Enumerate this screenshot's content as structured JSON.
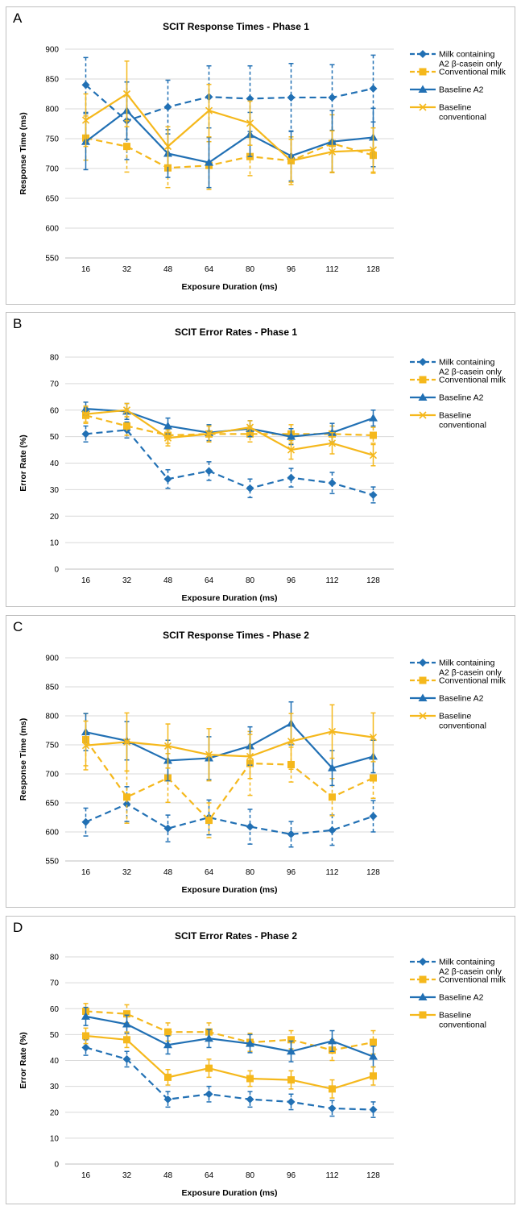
{
  "colors": {
    "blue": "#2170b4",
    "yellow": "#f5b81c",
    "grid": "#d9d9d9",
    "axis": "#404040"
  },
  "chart_data": [
    {
      "panel_label": "A",
      "type": "line",
      "title": "SCIT Response Times - Phase 1",
      "xlabel": "Exposure Duration (ms)",
      "ylabel": "Response Time (ms)",
      "ylim": [
        550,
        900
      ],
      "ytick_step": 50,
      "yticks": [
        "550",
        "600",
        "650",
        "700",
        "750",
        "800",
        "850",
        "900"
      ],
      "categories": [
        "16",
        "32",
        "48",
        "64",
        "80",
        "96",
        "112",
        "128"
      ],
      "legend_position": "right",
      "series": [
        {
          "name": "Milk containing A2 β-casein only",
          "color": "blue",
          "dashed": true,
          "marker": "diamond",
          "values": [
            840,
            780,
            803,
            820,
            817,
            819,
            819,
            834
          ],
          "errors": [
            46,
            65,
            45,
            52,
            55,
            57,
            55,
            56
          ]
        },
        {
          "name": "Conventional milk",
          "color": "yellow",
          "dashed": true,
          "marker": "square",
          "values": [
            751,
            737,
            701,
            705,
            720,
            713,
            742,
            722
          ],
          "errors": [
            37,
            43,
            33,
            40,
            32,
            40,
            48,
            30
          ]
        },
        {
          "name": "Baseline A2",
          "color": "blue",
          "dashed": false,
          "marker": "triangle",
          "values": [
            745,
            797,
            725,
            710,
            757,
            721,
            745,
            752
          ],
          "errors": [
            47,
            48,
            40,
            42,
            37,
            42,
            52,
            49
          ]
        },
        {
          "name": "Baseline conventional",
          "color": "yellow",
          "dashed": false,
          "marker": "x",
          "values": [
            781,
            825,
            737,
            797,
            776,
            713,
            728,
            731
          ],
          "errors": [
            44,
            55,
            33,
            44,
            37,
            36,
            35,
            37
          ]
        }
      ]
    },
    {
      "panel_label": "B",
      "type": "line",
      "title": "SCIT Error Rates - Phase 1",
      "xlabel": "Exposure Duration (ms)",
      "ylabel": "Error Rate (%)",
      "ylim": [
        0,
        80
      ],
      "ytick_step": 10,
      "yticks": [
        "0",
        "10",
        "20",
        "30",
        "40",
        "50",
        "60",
        "70",
        "80"
      ],
      "categories": [
        "16",
        "32",
        "48",
        "64",
        "80",
        "96",
        "112",
        "128"
      ],
      "legend_position": "right",
      "series": [
        {
          "name": "Milk containing A2 β-casein only",
          "color": "blue",
          "dashed": true,
          "marker": "diamond",
          "values": [
            51,
            52.5,
            34,
            37,
            30.5,
            34.5,
            32.5,
            28
          ],
          "errors": [
            3,
            3,
            3.5,
            3.5,
            3.5,
            3.5,
            4,
            3
          ]
        },
        {
          "name": "Conventional milk",
          "color": "yellow",
          "dashed": true,
          "marker": "square",
          "values": [
            58,
            54,
            50.5,
            51,
            51,
            51,
            51,
            50.5
          ],
          "errors": [
            3,
            3.5,
            3,
            3,
            3,
            3.5,
            3,
            3
          ]
        },
        {
          "name": "Baseline A2",
          "color": "blue",
          "dashed": false,
          "marker": "triangle",
          "values": [
            60.5,
            59.5,
            54,
            51.5,
            53,
            50,
            51.5,
            57
          ],
          "errors": [
            2.5,
            3,
            3,
            3,
            3,
            3,
            3.5,
            3
          ]
        },
        {
          "name": "Baseline conventional",
          "color": "yellow",
          "dashed": false,
          "marker": "x",
          "values": [
            58.5,
            60,
            49.5,
            51,
            53.5,
            45,
            47.5,
            43
          ],
          "errors": [
            3,
            2.5,
            3,
            3,
            2.5,
            3.5,
            4,
            4
          ]
        }
      ]
    },
    {
      "panel_label": "C",
      "type": "line",
      "title": "SCIT Response Times - Phase 2",
      "xlabel": "Exposure Duration (ms)",
      "ylabel": "Response Time (ms)",
      "ylim": [
        550,
        900
      ],
      "ytick_step": 50,
      "yticks": [
        "550",
        "600",
        "650",
        "700",
        "750",
        "800",
        "850",
        "900"
      ],
      "categories": [
        "16",
        "32",
        "48",
        "64",
        "80",
        "96",
        "112",
        "128"
      ],
      "legend_position": "right",
      "series": [
        {
          "name": "Milk containing A2 β-casein only",
          "color": "blue",
          "dashed": true,
          "marker": "diamond",
          "values": [
            617,
            648,
            606,
            625,
            609,
            596,
            603,
            627
          ],
          "errors": [
            24,
            30,
            23,
            30,
            30,
            22,
            26,
            27
          ]
        },
        {
          "name": "Conventional milk",
          "color": "yellow",
          "dashed": true,
          "marker": "square",
          "values": [
            759,
            660,
            693,
            620,
            718,
            716,
            660,
            693
          ],
          "errors": [
            45,
            45,
            42,
            30,
            55,
            30,
            32,
            35
          ]
        },
        {
          "name": "Baseline A2",
          "color": "blue",
          "dashed": false,
          "marker": "triangle",
          "values": [
            772,
            757,
            723,
            727,
            748,
            787,
            710,
            730
          ],
          "errors": [
            32,
            33,
            35,
            37,
            33,
            37,
            30,
            28
          ]
        },
        {
          "name": "Baseline conventional",
          "color": "yellow",
          "dashed": false,
          "marker": "x",
          "values": [
            749,
            755,
            748,
            733,
            730,
            756,
            773,
            763
          ],
          "errors": [
            42,
            50,
            38,
            45,
            38,
            48,
            46,
            42
          ]
        }
      ]
    },
    {
      "panel_label": "D",
      "type": "line",
      "title": "SCIT Error Rates - Phase 2",
      "xlabel": "Exposure Duration (ms)",
      "ylabel": "Error Rate (%)",
      "ylim": [
        0,
        80
      ],
      "ytick_step": 10,
      "yticks": [
        "0",
        "10",
        "20",
        "30",
        "40",
        "50",
        "60",
        "70",
        "80"
      ],
      "categories": [
        "16",
        "32",
        "48",
        "64",
        "80",
        "96",
        "112",
        "128"
      ],
      "legend_position": "right",
      "series": [
        {
          "name": "Milk containing A2 β-casein only",
          "color": "blue",
          "dashed": true,
          "marker": "diamond",
          "values": [
            45,
            40.5,
            25,
            27,
            25,
            24,
            21.5,
            21
          ],
          "errors": [
            3,
            3,
            3,
            3,
            3,
            3,
            3,
            3
          ]
        },
        {
          "name": "Conventional milk",
          "color": "yellow",
          "dashed": true,
          "marker": "square",
          "values": [
            59,
            58,
            51,
            51,
            47,
            48,
            44,
            47
          ],
          "errors": [
            3,
            3.5,
            3.5,
            3.5,
            3.5,
            3.5,
            4,
            4.5
          ]
        },
        {
          "name": "Baseline A2",
          "color": "blue",
          "dashed": false,
          "marker": "triangle",
          "values": [
            57,
            54,
            46,
            48.5,
            46.5,
            43.5,
            47.5,
            41.5
          ],
          "errors": [
            3.5,
            3.5,
            3.5,
            3.5,
            3.5,
            4,
            4,
            4
          ]
        },
        {
          "name": "Baseline conventional",
          "color": "yellow",
          "dashed": false,
          "marker": "square",
          "values": [
            49.5,
            48,
            33.5,
            37,
            33,
            32.5,
            29,
            34
          ],
          "errors": [
            3,
            3,
            3,
            3.5,
            3,
            3.5,
            3.5,
            3.5
          ]
        }
      ]
    }
  ]
}
